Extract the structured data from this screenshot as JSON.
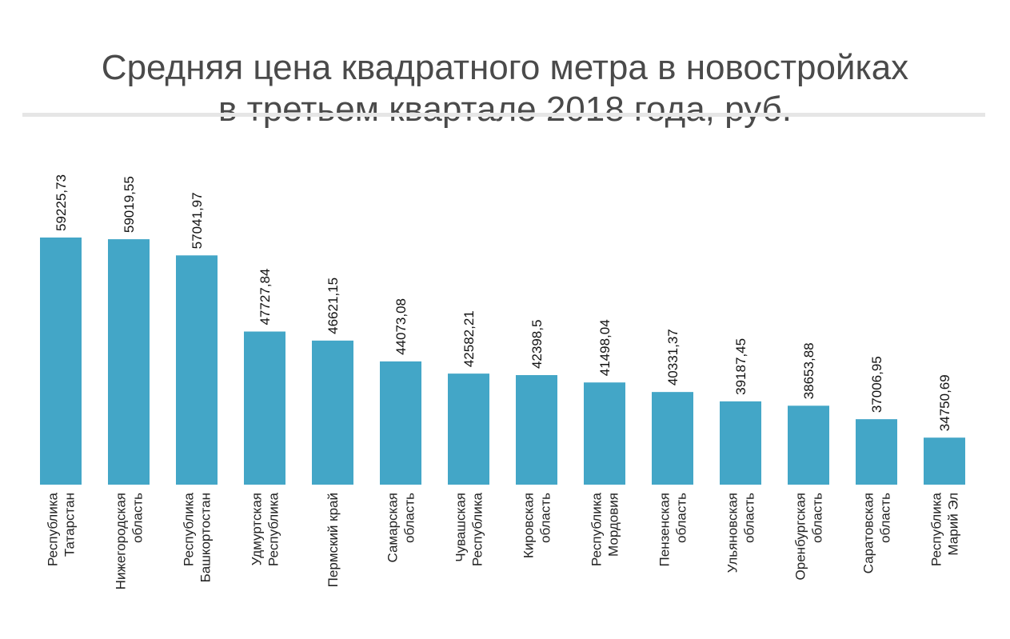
{
  "chart_data": {
    "type": "bar",
    "title_lines": [
      "Средняя цена квадратного метра в новостройках",
      "в третьем квартале 2018 года, руб."
    ],
    "categories": [
      [
        "Республика",
        "Татарстан"
      ],
      [
        "Нижегородская",
        "область"
      ],
      [
        "Республика",
        "Башкортостан"
      ],
      [
        "Удмуртская",
        "Республика"
      ],
      [
        "Пермский край"
      ],
      [
        "Самарская",
        "область"
      ],
      [
        "Чувашская",
        "Республика"
      ],
      [
        "Кировская",
        "область"
      ],
      [
        "Республика",
        "Мордовия"
      ],
      [
        "Пензенская",
        "область"
      ],
      [
        "Ульяновская",
        "область"
      ],
      [
        "Оренбургская",
        "область"
      ],
      [
        "Саратовская",
        "область"
      ],
      [
        "Республика",
        "Марий Эл"
      ]
    ],
    "values": [
      59225.73,
      59019.55,
      57041.97,
      47727.84,
      46621.15,
      44073.08,
      42582.21,
      42398.5,
      41498.04,
      40331.37,
      39187.45,
      38653.88,
      37006.95,
      34750.69
    ],
    "value_labels": [
      "59225,73",
      "59019,55",
      "57041,97",
      "47727,84",
      "46621,15",
      "44073,08",
      "42582,21",
      "42398,5",
      "41498,04",
      "40331,37",
      "39187,45",
      "38653,88",
      "37006,95",
      "34750,69"
    ],
    "ylim": [
      29000,
      59500
    ],
    "bar_color": "#43a6c7",
    "grid": false,
    "legend": "none"
  }
}
